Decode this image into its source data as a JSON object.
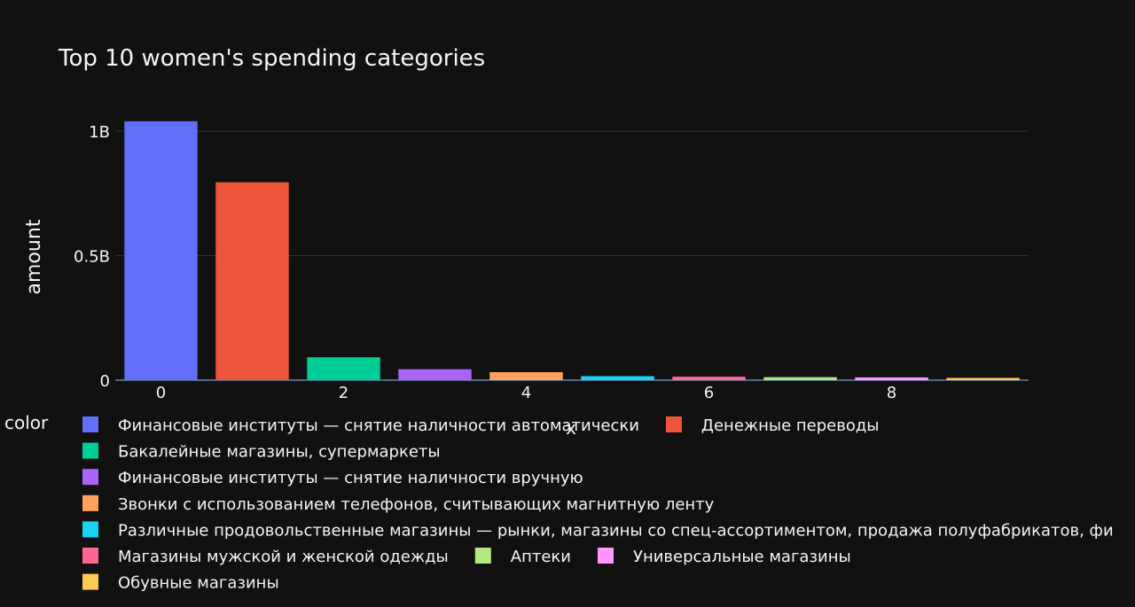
{
  "chart_data": {
    "type": "bar",
    "title": "Top 10 women's spending categories",
    "xlabel": "x",
    "ylabel": "amount",
    "x": [
      0,
      1,
      2,
      3,
      4,
      5,
      6,
      7,
      8,
      9
    ],
    "x_ticks": [
      "0",
      "2",
      "4",
      "6",
      "8"
    ],
    "y_ticks": [
      "0",
      "0.5B",
      "1B"
    ],
    "ylim": [
      0,
      1100000000
    ],
    "grid": true,
    "legend_title": "color",
    "legend_position": "bottom",
    "series": [
      {
        "name": "Финансовые институты — снятие наличности автоматически",
        "x": 0,
        "value": 1040000000,
        "color": "#636efa"
      },
      {
        "name": "Денежные переводы",
        "x": 1,
        "value": 795000000,
        "color": "#ef553b"
      },
      {
        "name": "Бакалейные магазины, супермаркеты",
        "x": 2,
        "value": 92000000,
        "color": "#00cc96"
      },
      {
        "name": "Финансовые институты — снятие наличности вручную",
        "x": 3,
        "value": 44000000,
        "color": "#ab63fa"
      },
      {
        "name": "Звонки с использованием телефонов, считывающих магнитную ленту",
        "x": 4,
        "value": 32000000,
        "color": "#ffa15a"
      },
      {
        "name": "Различные продовольственные магазины — рынки, магазины со спец-ассортиментом, продажа полуфабрикатов, фи",
        "x": 5,
        "value": 16000000,
        "color": "#19d3f3"
      },
      {
        "name": "Магазины мужской и женской одежды",
        "x": 6,
        "value": 14000000,
        "color": "#ff6692"
      },
      {
        "name": "Аптеки",
        "x": 7,
        "value": 12000000,
        "color": "#b6e880"
      },
      {
        "name": "Универсальные магазины",
        "x": 8,
        "value": 11000000,
        "color": "#ff97ff"
      },
      {
        "name": "Обувные магазины",
        "x": 9,
        "value": 9000000,
        "color": "#fecb52"
      }
    ]
  }
}
